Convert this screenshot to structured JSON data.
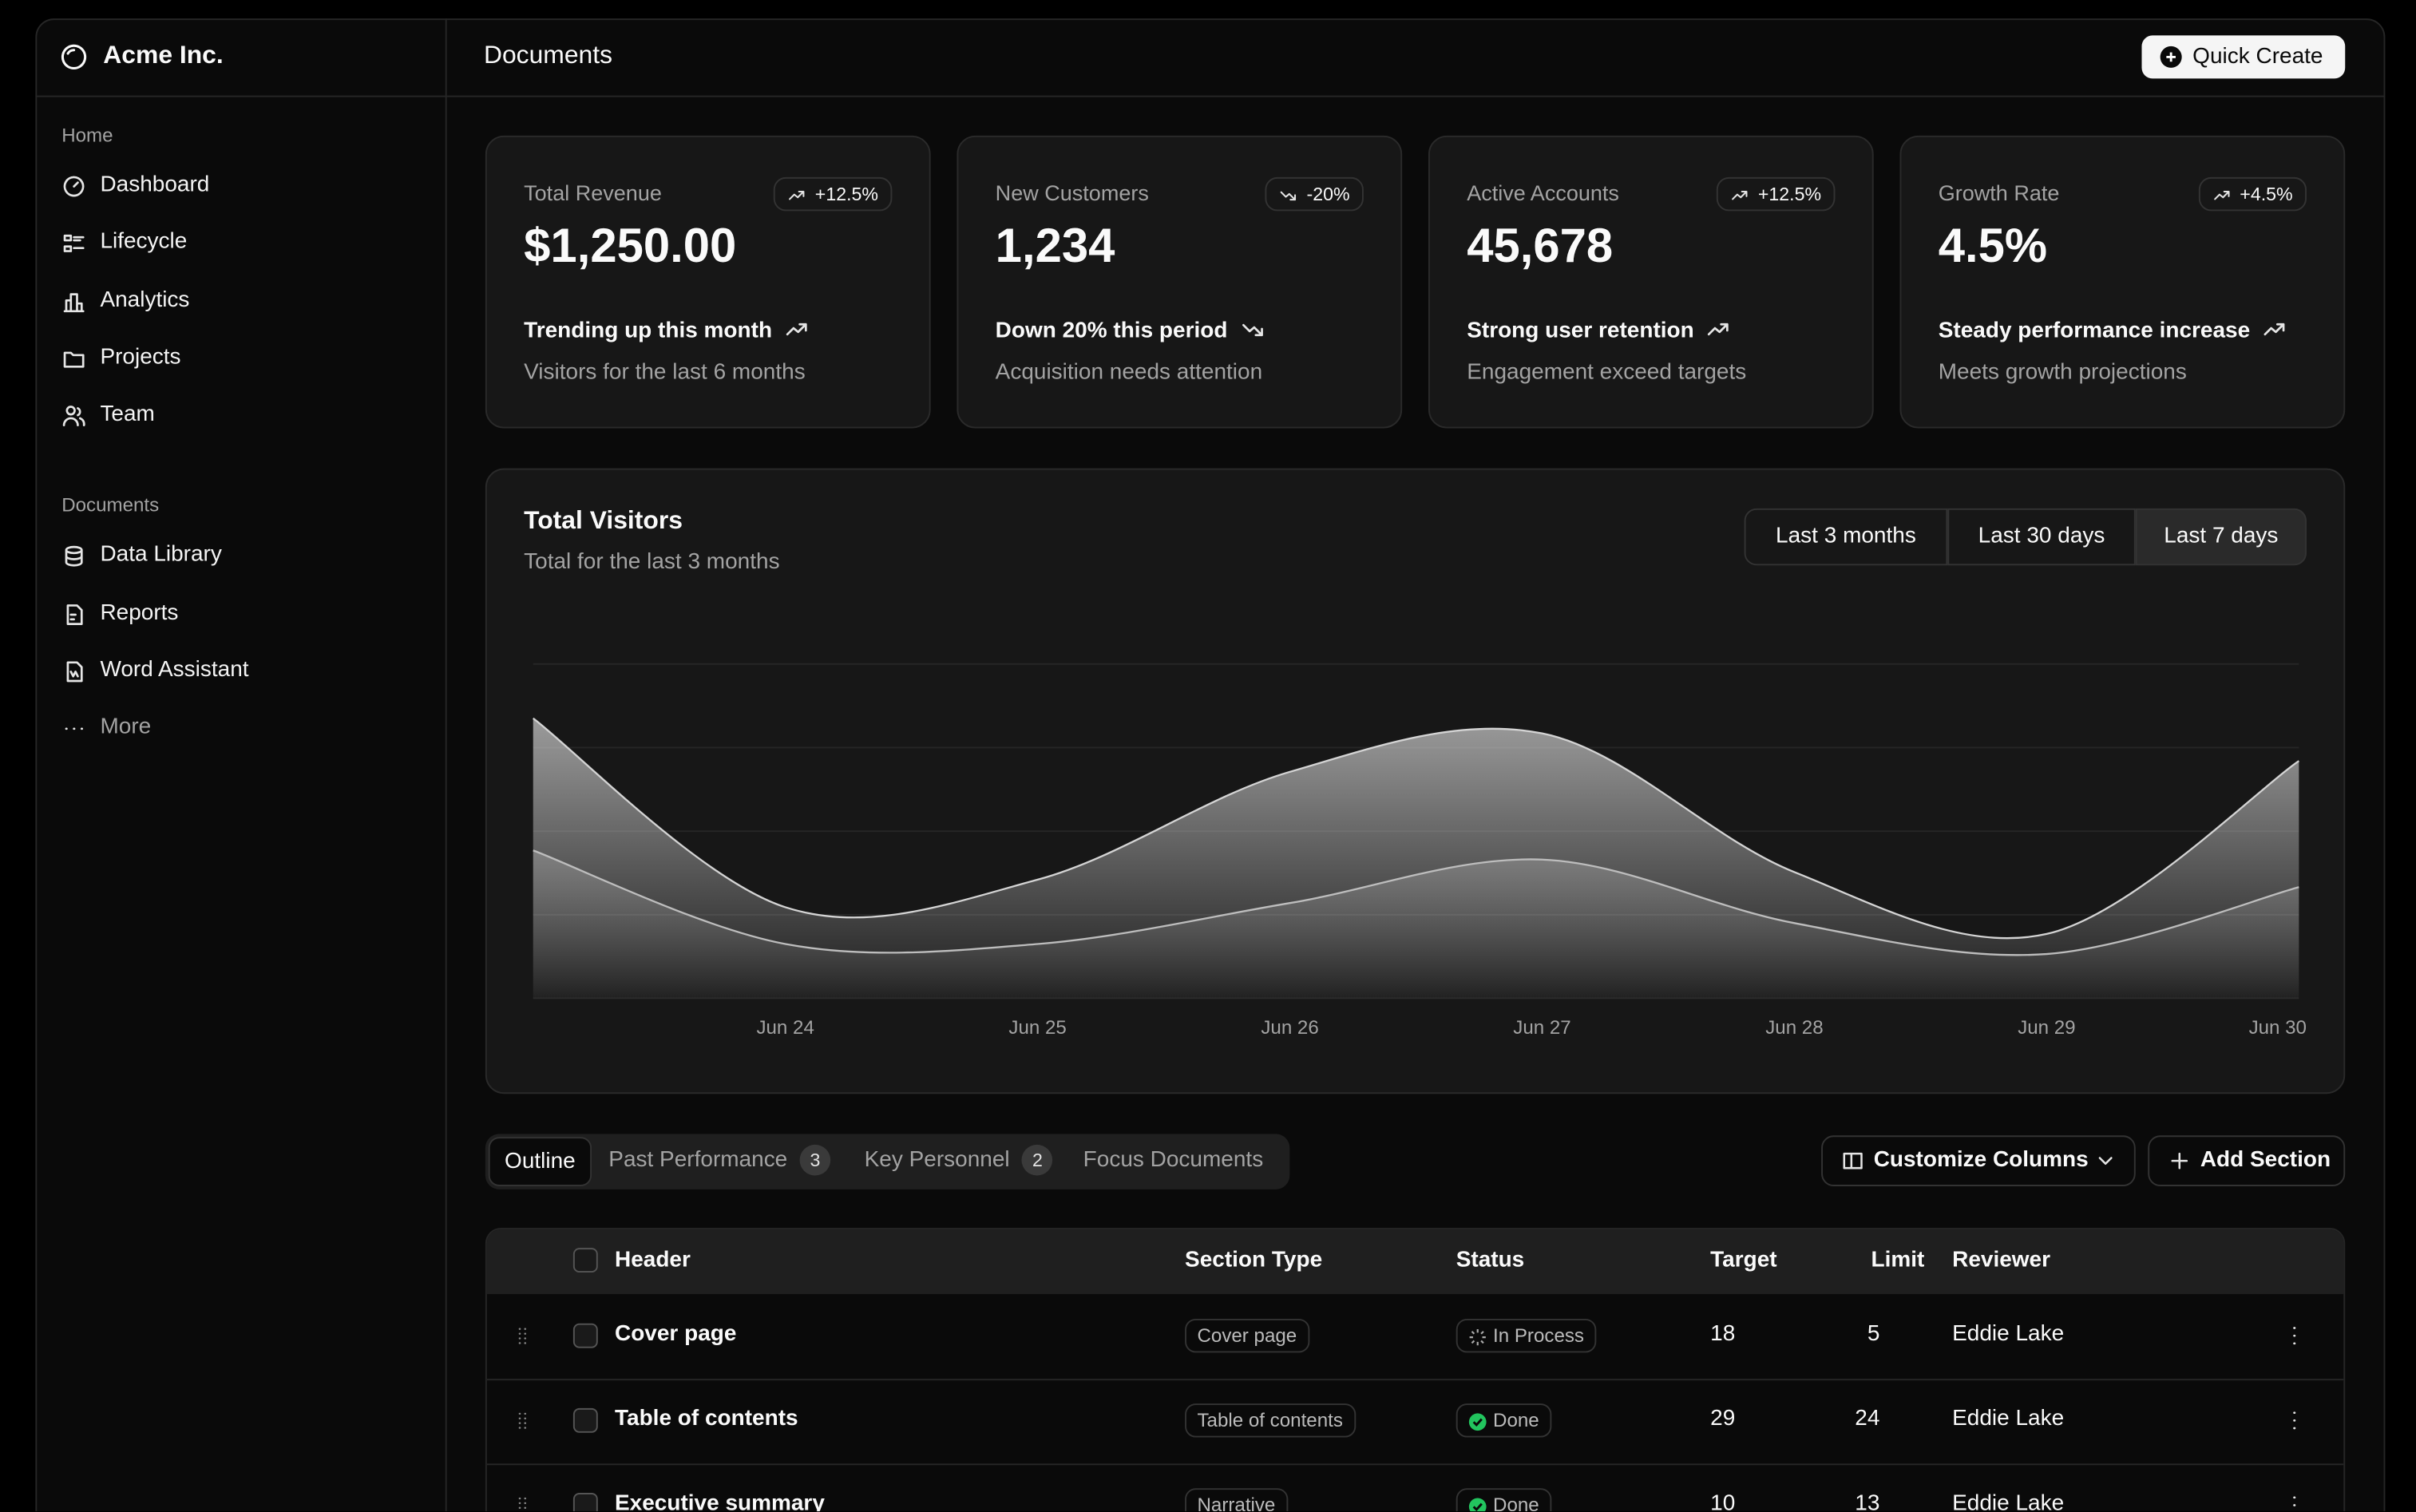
{
  "sidebar": {
    "brand": "Acme Inc.",
    "groups": [
      {
        "label": "Home",
        "items": [
          "Dashboard",
          "Lifecycle",
          "Analytics",
          "Projects",
          "Team"
        ]
      },
      {
        "label": "Documents",
        "items": [
          "Data Library",
          "Reports",
          "Word Assistant",
          "More"
        ]
      }
    ]
  },
  "header": {
    "title": "Documents",
    "button": "Quick Create"
  },
  "cards": [
    {
      "label": "Total Revenue",
      "badge": "+12.5%",
      "value": "$1,250.00",
      "trend": "Trending up this month",
      "note": "Visitors for the last 6 months"
    },
    {
      "label": "New Customers",
      "badge": "-20%",
      "value": "1,234",
      "trend": "Down 20% this period",
      "note": "Acquisition needs attention"
    },
    {
      "label": "Active Accounts",
      "badge": "+12.5%",
      "value": "45,678",
      "trend": "Strong user retention",
      "note": "Engagement exceed targets"
    },
    {
      "label": "Growth Rate",
      "badge": "+4.5%",
      "value": "4.5%",
      "trend": "Steady performance increase",
      "note": "Meets growth projections"
    }
  ],
  "ranges": [
    "Last 3 months",
    "Last 30 days",
    "Last 7 days"
  ],
  "chart_data": {
    "type": "area",
    "title": "Total Visitors",
    "subtitle": "Total for the last 3 months",
    "categories": [
      null,
      "Jun 24",
      "Jun 25",
      "Jun 26",
      "Jun 27",
      "Jun 28",
      "Jun 29",
      "Jun 30"
    ],
    "series": [
      {
        "color": "#d4d4d4",
        "values": [
          335,
          109,
          142,
          271,
          317,
          151,
          77,
          284
        ]
      },
      {
        "color": "#bdbdbd",
        "values": [
          177,
          65,
          65,
          114,
          166,
          90,
          53,
          133
        ]
      }
    ],
    "ylim": [
      0,
      400
    ],
    "yticks": [
      0,
      100,
      200,
      300,
      400
    ],
    "grid": true
  },
  "tabs": [
    {
      "label": "Outline"
    },
    {
      "label": "Past Performance",
      "count": 3
    },
    {
      "label": "Key Personnel",
      "count": 2
    },
    {
      "label": "Focus Documents"
    }
  ],
  "actions": [
    "Customize Columns",
    "Add Section"
  ],
  "table": {
    "columns": [
      "Header",
      "Section Type",
      "Status",
      "Target",
      "Limit",
      "Reviewer"
    ],
    "rows": [
      [
        "Cover page",
        "Cover page",
        "In Process",
        18,
        5,
        "Eddie Lake"
      ],
      [
        "Table of contents",
        "Table of contents",
        "Done",
        29,
        24,
        "Eddie Lake"
      ],
      [
        "Executive summary",
        "Narrative",
        "Done",
        10,
        13,
        "Eddie Lake"
      ]
    ]
  }
}
